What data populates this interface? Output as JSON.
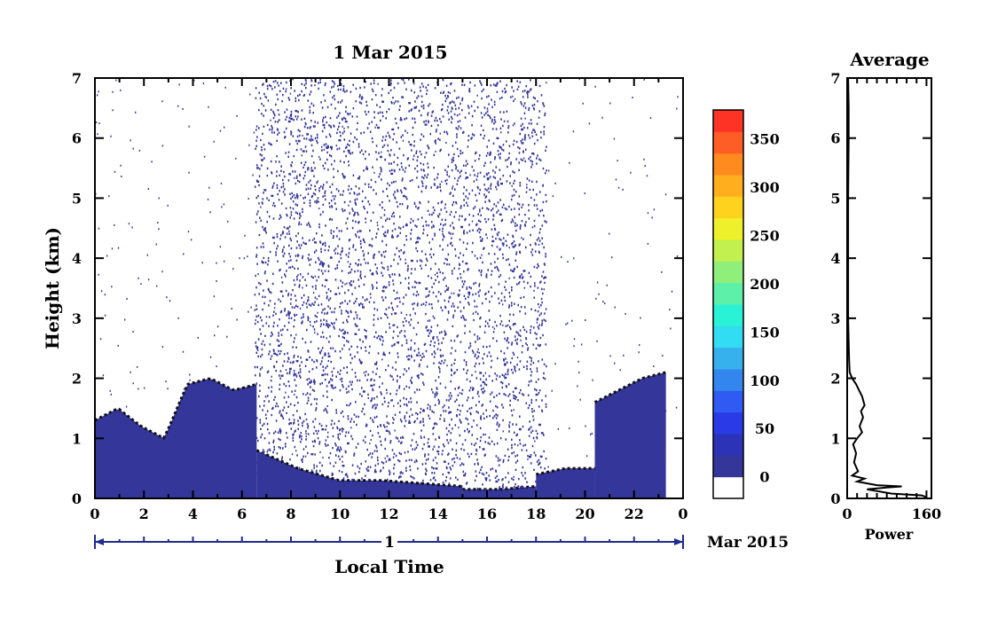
{
  "chart_data": [
    {
      "type": "heatmap",
      "title": "1 Mar 2015",
      "xlabel": "Local Time",
      "ylabel": "Height (km)",
      "xlim": [
        0,
        24
      ],
      "ylim": [
        0,
        7
      ],
      "x_ticks": [
        "0",
        "2",
        "4",
        "6",
        "8",
        "10",
        "12",
        "14",
        "16",
        "18",
        "20",
        "22",
        "0"
      ],
      "y_ticks": [
        "0",
        "1",
        "2",
        "3",
        "4",
        "5",
        "6",
        "7"
      ],
      "date_axis": {
        "day_label": "1",
        "month_label": "Mar 2015"
      },
      "colorbar": {
        "min": 0,
        "max": 380,
        "tick_labels": [
          "0",
          "50",
          "100",
          "150",
          "200",
          "250",
          "300",
          "350"
        ],
        "tick_values": [
          0,
          50,
          100,
          150,
          200,
          250,
          300,
          350
        ],
        "colors": [
          "#ffffff",
          "#34369a",
          "#2c33b7",
          "#2a3ae6",
          "#2f5bf2",
          "#3286ee",
          "#37b0ee",
          "#32dcf2",
          "#2af2d6",
          "#5cf0a8",
          "#8ef07a",
          "#c2f04e",
          "#eef02c",
          "#ffd21e",
          "#ffae1e",
          "#ff8a1e",
          "#ff5c26",
          "#ff3226"
        ]
      },
      "regions": [
        {
          "x_range": [
            0,
            6.6
          ],
          "top_km": [
            1.3,
            1.5,
            1.2,
            1.0,
            1.9,
            2.0,
            1.8,
            1.9
          ],
          "approx_power": 0
        },
        {
          "x_range": [
            6.6,
            15
          ],
          "top_km": [
            0.8,
            0.5,
            0.3,
            0.3,
            0.25,
            0.2
          ],
          "approx_power": 0
        },
        {
          "x_range": [
            15,
            18
          ],
          "top_km": [
            0.15,
            0.15,
            0.2
          ],
          "approx_power": 0
        },
        {
          "x_range": [
            18,
            20.4
          ],
          "top_km": [
            0.4,
            0.5,
            0.5
          ],
          "approx_power": 0
        },
        {
          "x_range": [
            20.4,
            23.3
          ],
          "top_km": [
            1.6,
            1.8,
            2.0,
            2.1
          ],
          "approx_power": 0
        }
      ]
    },
    {
      "type": "line",
      "title": "Average",
      "xlabel": "Power",
      "ylabel": "",
      "xlim": [
        0,
        170
      ],
      "ylim": [
        0,
        7
      ],
      "x_ticks": [
        "0",
        "160"
      ],
      "y_ticks": [
        "0",
        "1",
        "2",
        "3",
        "4",
        "5",
        "6",
        "7"
      ],
      "series": [
        {
          "points": [
            [
              160,
              0.02
            ],
            [
              150,
              0.05
            ],
            [
              90,
              0.08
            ],
            [
              40,
              0.15
            ],
            [
              80,
              0.18
            ],
            [
              110,
              0.2
            ],
            [
              60,
              0.22
            ],
            [
              20,
              0.28
            ],
            [
              35,
              0.33
            ],
            [
              10,
              0.38
            ],
            [
              22,
              0.45
            ],
            [
              14,
              0.6
            ],
            [
              18,
              0.75
            ],
            [
              12,
              0.9
            ],
            [
              20,
              1.0
            ],
            [
              30,
              1.1
            ],
            [
              25,
              1.2
            ],
            [
              32,
              1.35
            ],
            [
              28,
              1.45
            ],
            [
              35,
              1.55
            ],
            [
              30,
              1.7
            ],
            [
              24,
              1.8
            ],
            [
              18,
              1.9
            ],
            [
              10,
              2.0
            ],
            [
              5,
              2.1
            ],
            [
              4,
              2.3
            ],
            [
              3,
              2.6
            ],
            [
              2,
              3.0
            ],
            [
              2,
              4.0
            ],
            [
              2,
              5.0
            ],
            [
              3,
              6.0
            ],
            [
              3,
              6.5
            ],
            [
              2,
              7.0
            ]
          ]
        }
      ]
    }
  ]
}
